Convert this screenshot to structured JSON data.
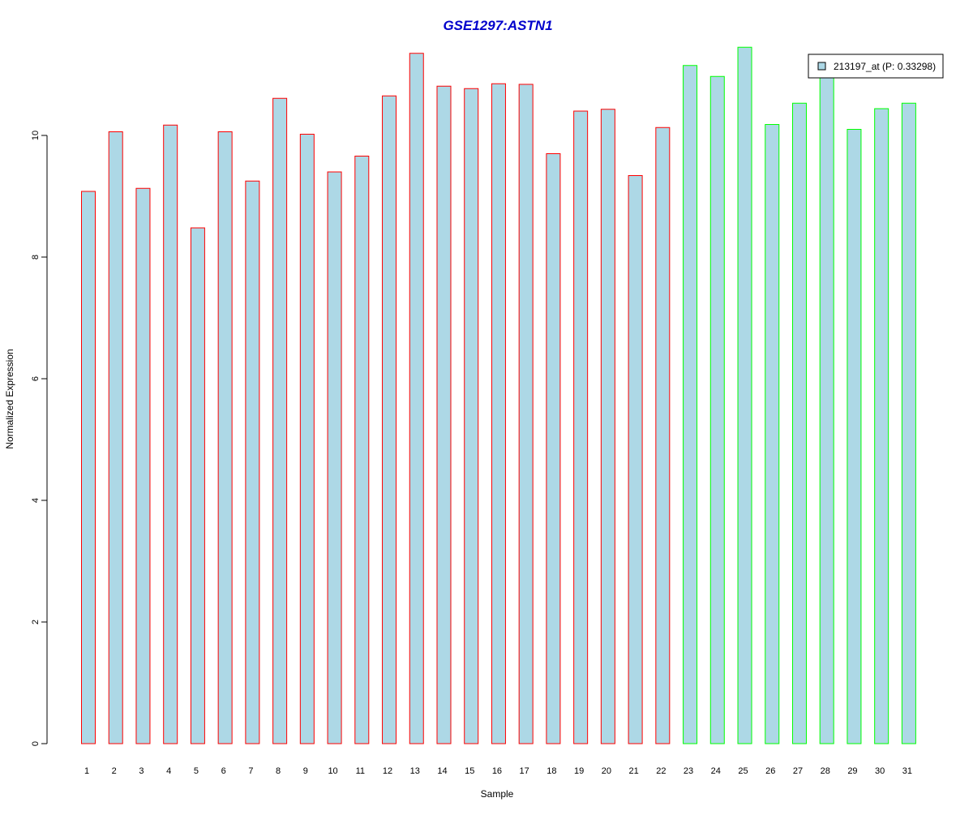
{
  "chart_data": {
    "type": "bar",
    "title": "GSE1297:ASTN1",
    "xlabel": "Sample",
    "ylabel": "Normalized Expression",
    "categories": [
      "1",
      "2",
      "3",
      "4",
      "5",
      "6",
      "7",
      "8",
      "9",
      "10",
      "11",
      "12",
      "13",
      "14",
      "15",
      "16",
      "17",
      "18",
      "19",
      "20",
      "21",
      "22",
      "23",
      "24",
      "25",
      "26",
      "27",
      "28",
      "29",
      "30",
      "31"
    ],
    "values": [
      9.08,
      10.06,
      9.13,
      10.17,
      8.48,
      10.06,
      9.25,
      10.61,
      10.02,
      9.4,
      9.66,
      10.65,
      11.35,
      10.81,
      10.77,
      10.85,
      10.84,
      9.7,
      10.4,
      10.43,
      9.34,
      10.13,
      11.15,
      10.97,
      11.45,
      10.18,
      10.53,
      11.0,
      10.1,
      10.44,
      10.53
    ],
    "groups": [
      "red",
      "red",
      "red",
      "red",
      "red",
      "red",
      "red",
      "red",
      "red",
      "red",
      "red",
      "red",
      "red",
      "red",
      "red",
      "red",
      "red",
      "red",
      "red",
      "red",
      "red",
      "red",
      "green",
      "green",
      "green",
      "green",
      "green",
      "green",
      "green",
      "green",
      "green"
    ],
    "ylim": [
      0,
      11.5
    ],
    "yticks": [
      "0",
      "2",
      "4",
      "6",
      "8",
      "10"
    ],
    "legend": {
      "label": "213197_at (P: 0.33298)",
      "position": "top-right"
    },
    "colors": {
      "bar_fill": "#add8e6",
      "border_red": "#ff0000",
      "border_green": "#00ff00",
      "title": "#0000cc"
    },
    "grid": false
  }
}
